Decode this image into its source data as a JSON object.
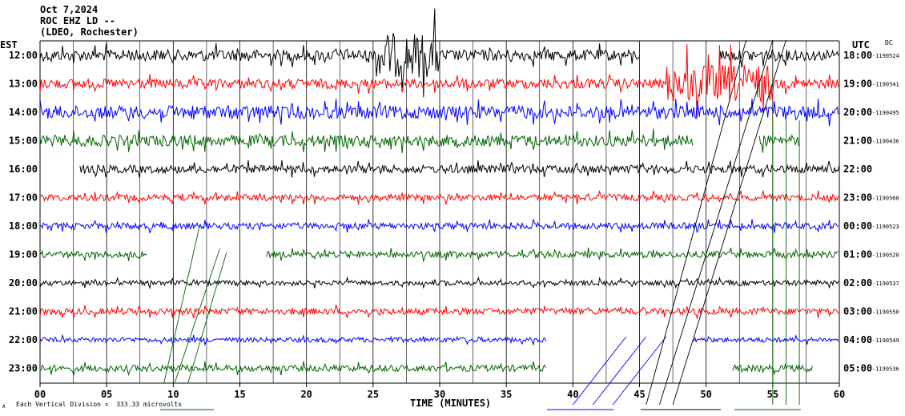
{
  "header": {
    "date": "Oct 7,2024",
    "station": "ROC EHZ LD --",
    "network": "(LDEO, Rochester)"
  },
  "labels": {
    "est": "EST",
    "utc": "UTC",
    "dc": "DC",
    "xlabel": "TIME (MINUTES)",
    "scale_note": "Each Vertical Division =  333.33 microvolts",
    "corner_mark": "A"
  },
  "chart_data": {
    "type": "line",
    "title": "ROC EHZ LD --",
    "xlabel": "TIME (MINUTES)",
    "xlim": [
      0,
      60
    ],
    "x_ticks": [
      "00",
      "05",
      "10",
      "15",
      "20",
      "25",
      "30",
      "35",
      "40",
      "45",
      "50",
      "55",
      "60"
    ],
    "vertical_division_microvolts": 333.33,
    "grid": "vertical every 2.5 minutes",
    "colors": [
      "#000000",
      "#ff0000",
      "#0000ff",
      "#006400"
    ],
    "rows": [
      {
        "est": "12:00",
        "utc": "18:00",
        "dc": "-1190524",
        "color": "#000000",
        "start": 0,
        "end": 45,
        "resume": 51,
        "resume_end": 60,
        "amp": 7,
        "event": [
          25,
          30
        ]
      },
      {
        "est": "13:00",
        "utc": "19:00",
        "dc": "-1190541",
        "color": "#ff0000",
        "start": 0,
        "end": 60,
        "amp": 6,
        "event": [
          47,
          55
        ]
      },
      {
        "est": "14:00",
        "utc": "20:00",
        "dc": "-1190495",
        "color": "#0000ff",
        "start": 0,
        "end": 60,
        "amp": 8
      },
      {
        "est": "15:00",
        "utc": "21:00",
        "dc": "-1190436",
        "color": "#006400",
        "start": 0,
        "end": 49,
        "resume": 54,
        "resume_end": 57,
        "amp": 7
      },
      {
        "est": "16:00",
        "utc": "22:00",
        "dc": "",
        "color": "#000000",
        "start": 3,
        "end": 60,
        "amp": 5
      },
      {
        "est": "17:00",
        "utc": "23:00",
        "dc": "-1190560",
        "color": "#ff0000",
        "start": 0,
        "end": 60,
        "amp": 4
      },
      {
        "est": "18:00",
        "utc": "00:00",
        "dc": "-1190523",
        "color": "#0000ff",
        "start": 0,
        "end": 60,
        "amp": 4
      },
      {
        "est": "19:00",
        "utc": "01:00",
        "dc": "-1190520",
        "color": "#006400",
        "start": 0,
        "end": 8,
        "resume": 17,
        "resume_end": 60,
        "amp": 4
      },
      {
        "est": "20:00",
        "utc": "02:00",
        "dc": "-1190537",
        "color": "#000000",
        "start": 0,
        "end": 60,
        "amp": 3
      },
      {
        "est": "21:00",
        "utc": "03:00",
        "dc": "-1190550",
        "color": "#ff0000",
        "start": 0,
        "end": 60,
        "amp": 4
      },
      {
        "est": "22:00",
        "utc": "04:00",
        "dc": "-1190549",
        "color": "#0000ff",
        "start": 0,
        "end": 38,
        "resume": 49,
        "resume_end": 60,
        "amp": 3
      },
      {
        "est": "23:00",
        "utc": "05:00",
        "dc": "-1190536",
        "color": "#006400",
        "start": 0,
        "end": 38,
        "resume": 52,
        "resume_end": 58,
        "amp": 4
      }
    ]
  }
}
